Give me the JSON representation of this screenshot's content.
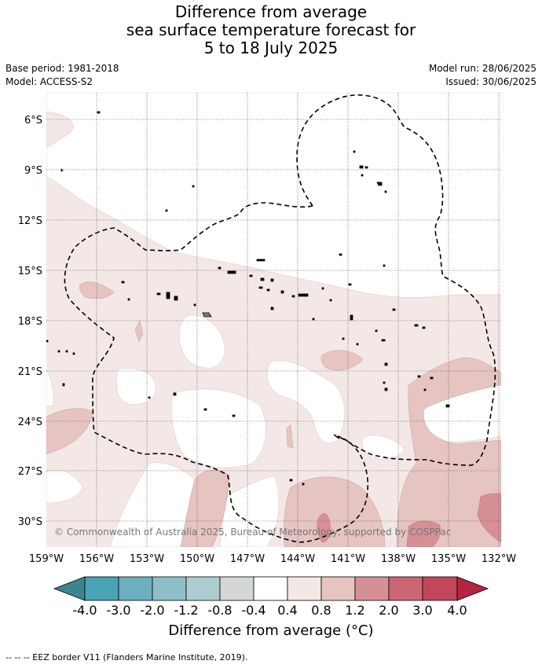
{
  "title": {
    "line1": "Difference from average",
    "line2": "sea surface temperature forecast for",
    "line3": "5 to 18 July 2025"
  },
  "meta_left": {
    "base_period": "Base period: 1981-2018",
    "model": "Model: ACCESS-S2"
  },
  "meta_right": {
    "model_run": "Model run: 28/06/2025",
    "issued": "Issued: 30/06/2025"
  },
  "map": {
    "lat_labels": [
      "6°S",
      "9°S",
      "12°S",
      "15°S",
      "18°S",
      "21°S",
      "24°S",
      "27°S",
      "30°S"
    ],
    "lon_labels": [
      "159°W",
      "156°W",
      "153°W",
      "150°W",
      "147°W",
      "144°W",
      "141°W",
      "138°W",
      "135°W",
      "132°W"
    ],
    "copyright": "© Commonwealth of Australia 2025, Bureau of Meteorology, supported by COSPPac"
  },
  "colorbar": {
    "ticks": [
      "-4.0",
      "-3.0",
      "-2.0",
      "-1.2",
      "-0.8",
      "-0.4",
      "0.4",
      "0.8",
      "1.2",
      "2.0",
      "3.0",
      "4.0"
    ],
    "colors": {
      "extend_low": "#3c8590",
      "c1": "#4aa3b4",
      "c2": "#6cb0bf",
      "c3": "#8dbfc9",
      "c4": "#adcdd1",
      "c5": "#d3d7d8",
      "c6": "#ffffff",
      "c7": "#f4e8e7",
      "c8": "#e6c4c1",
      "c9": "#d78f96",
      "c10": "#cc6674",
      "c11": "#c1475a",
      "extend_high": "#b52440"
    },
    "title": "Difference from average (°C)"
  },
  "footer": "--  --  -- EEZ border V11 (Flanders Marine Institute, 2019)."
}
